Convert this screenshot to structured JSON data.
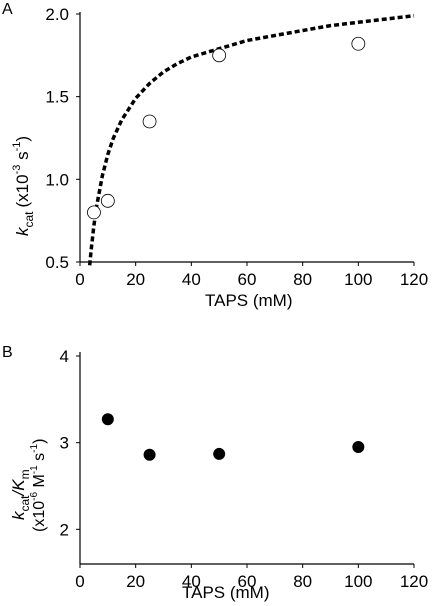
{
  "chart_data": [
    {
      "panel_label": "A",
      "type": "scatter",
      "xlabel": "TAPS (mM)",
      "ylabel": {
        "main": "k",
        "sub": "cat",
        "units_pre": "(x10",
        "exp1": "-3",
        "units_mid": " s",
        "exp2": "-1",
        "units_post": ")"
      },
      "xlim": [
        0,
        120
      ],
      "ylim": [
        0.5,
        2.0
      ],
      "xticks": [
        0,
        20,
        40,
        60,
        80,
        100,
        120
      ],
      "yticks": [
        0.5,
        1.0,
        1.5,
        2.0
      ],
      "xtick_labels": [
        "0",
        "20",
        "40",
        "60",
        "80",
        "100",
        "120"
      ],
      "ytick_labels": [
        "0.5",
        "1.0",
        "1.5",
        "2.0"
      ],
      "series": [
        {
          "marker": "open-circle",
          "x": [
            5,
            10,
            25,
            50,
            100
          ],
          "y": [
            0.8,
            0.87,
            1.35,
            1.75,
            1.82
          ]
        }
      ],
      "fit_curve": {
        "style": "dashed",
        "x": [
          3.5,
          4,
          5,
          6,
          8,
          10,
          12,
          15,
          20,
          25,
          30,
          35,
          40,
          50,
          60,
          70,
          80,
          90,
          100,
          110,
          120
        ],
        "y": [
          0.48,
          0.57,
          0.72,
          0.84,
          1.02,
          1.15,
          1.25,
          1.36,
          1.49,
          1.58,
          1.65,
          1.7,
          1.74,
          1.79,
          1.84,
          1.87,
          1.9,
          1.93,
          1.95,
          1.97,
          1.99
        ]
      },
      "grid": false
    },
    {
      "panel_label": "B",
      "type": "scatter",
      "xlabel": "TAPS (mM)",
      "ylabel": {
        "line1_main": "k",
        "line1_sub1": "cat",
        "line1_slash": "/K",
        "line1_sub2": "m",
        "line2_pre": "(x10",
        "line2_exp1": "-6",
        "line2_mid": " M",
        "line2_exp2": "-1",
        "line2_mid2": " s",
        "line2_exp3": "-1",
        "line2_post": ")"
      },
      "xlim": [
        0,
        120
      ],
      "ylim": [
        1.6,
        4.0
      ],
      "xticks": [
        0,
        20,
        40,
        60,
        80,
        100,
        120
      ],
      "yticks": [
        2,
        3,
        4
      ],
      "xtick_labels": [
        "0",
        "20",
        "40",
        "60",
        "80",
        "100",
        "120"
      ],
      "ytick_labels": [
        "2",
        "3",
        "4"
      ],
      "series": [
        {
          "marker": "filled-circle",
          "x": [
            10,
            25,
            50,
            100
          ],
          "y": [
            3.27,
            2.86,
            2.87,
            2.95
          ]
        }
      ],
      "grid": false
    }
  ]
}
